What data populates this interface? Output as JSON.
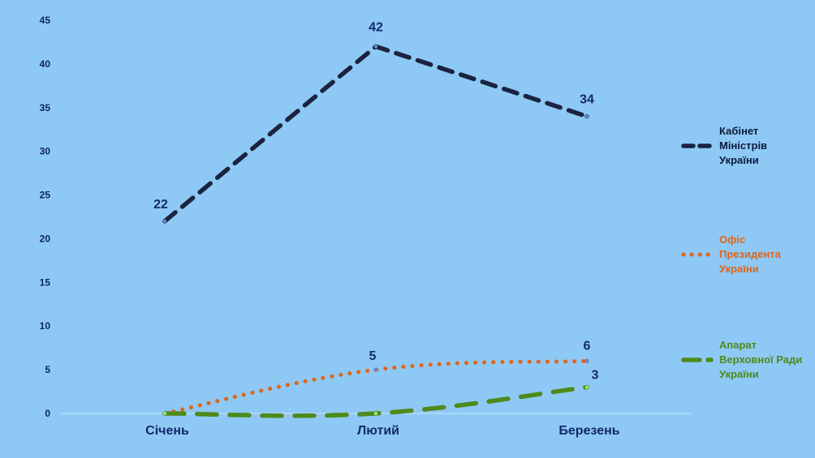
{
  "chart_data": {
    "type": "line",
    "title": "",
    "xlabel": "",
    "ylabel": "",
    "categories": [
      "Січень",
      "Лютий",
      "Березень"
    ],
    "ylim": [
      0,
      45
    ],
    "yticks": [
      0,
      5,
      10,
      15,
      20,
      25,
      30,
      35,
      40,
      45
    ],
    "grid": false,
    "legend_position": "right",
    "series": [
      {
        "name": "Кабінет Міністрів України",
        "legend_lines": [
          "Кабінет",
          "Міністрів",
          "України"
        ],
        "values": [
          22,
          42,
          34
        ],
        "labels": [
          "22",
          "42",
          "34"
        ],
        "color": "#1b2340",
        "style": "dashed"
      },
      {
        "name": "Офіс Президента України",
        "legend_lines": [
          "Офіс",
          "Президента",
          "України"
        ],
        "values": [
          0,
          5,
          6
        ],
        "labels": [
          "",
          "5",
          "6"
        ],
        "color": "#e0641a",
        "style": "dotted"
      },
      {
        "name": "Апарат Верховної Ради України",
        "legend_lines": [
          "Апарат",
          "Верховної Ради",
          "України"
        ],
        "values": [
          0,
          0,
          3
        ],
        "labels": [
          "",
          "",
          "3"
        ],
        "color": "#4f8a1c",
        "style": "longdash"
      }
    ]
  }
}
